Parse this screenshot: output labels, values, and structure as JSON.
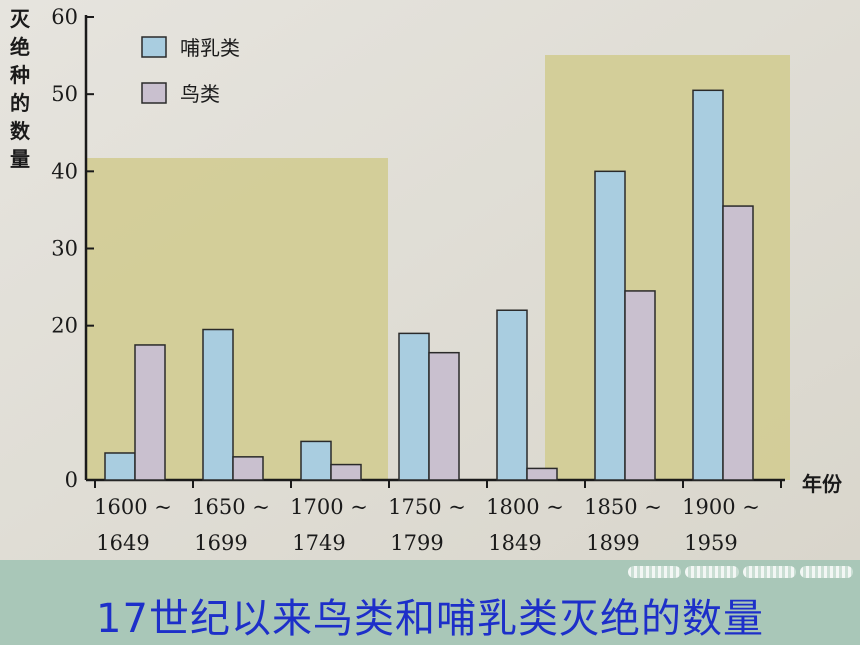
{
  "colors": {
    "mammal": "#a9cde0",
    "bird": "#c9c0cf",
    "panel": "#d2cc92",
    "caption_text": "#1d2fc9"
  },
  "chart_data": {
    "type": "bar",
    "ylabel": "灭绝种的数量",
    "xlabel": "年份",
    "ylim": [
      0,
      60
    ],
    "yticks": [
      0,
      20,
      30,
      40,
      50,
      60
    ],
    "ytick_labels": [
      "0",
      "20",
      "30",
      "40",
      "50",
      "60"
    ],
    "categories": [
      [
        "1600 ~",
        "1649"
      ],
      [
        "1650 ~",
        "1699"
      ],
      [
        "1700 ~",
        "1749"
      ],
      [
        "1750 ~",
        "1799"
      ],
      [
        "1800 ~",
        "1849"
      ],
      [
        "1850 ~",
        "1899"
      ],
      [
        "1900 ~",
        "1959"
      ]
    ],
    "series": [
      {
        "name": "哺乳类",
        "values": [
          3.5,
          19.5,
          5,
          19,
          22,
          40,
          50.5
        ]
      },
      {
        "name": "鸟类",
        "values": [
          17.5,
          3,
          2,
          16.5,
          1.5,
          24.5,
          35.5
        ]
      }
    ],
    "legend_position": "top-left",
    "grid": false
  },
  "caption": "17世纪以来鸟类和哺乳类灭绝的数量"
}
